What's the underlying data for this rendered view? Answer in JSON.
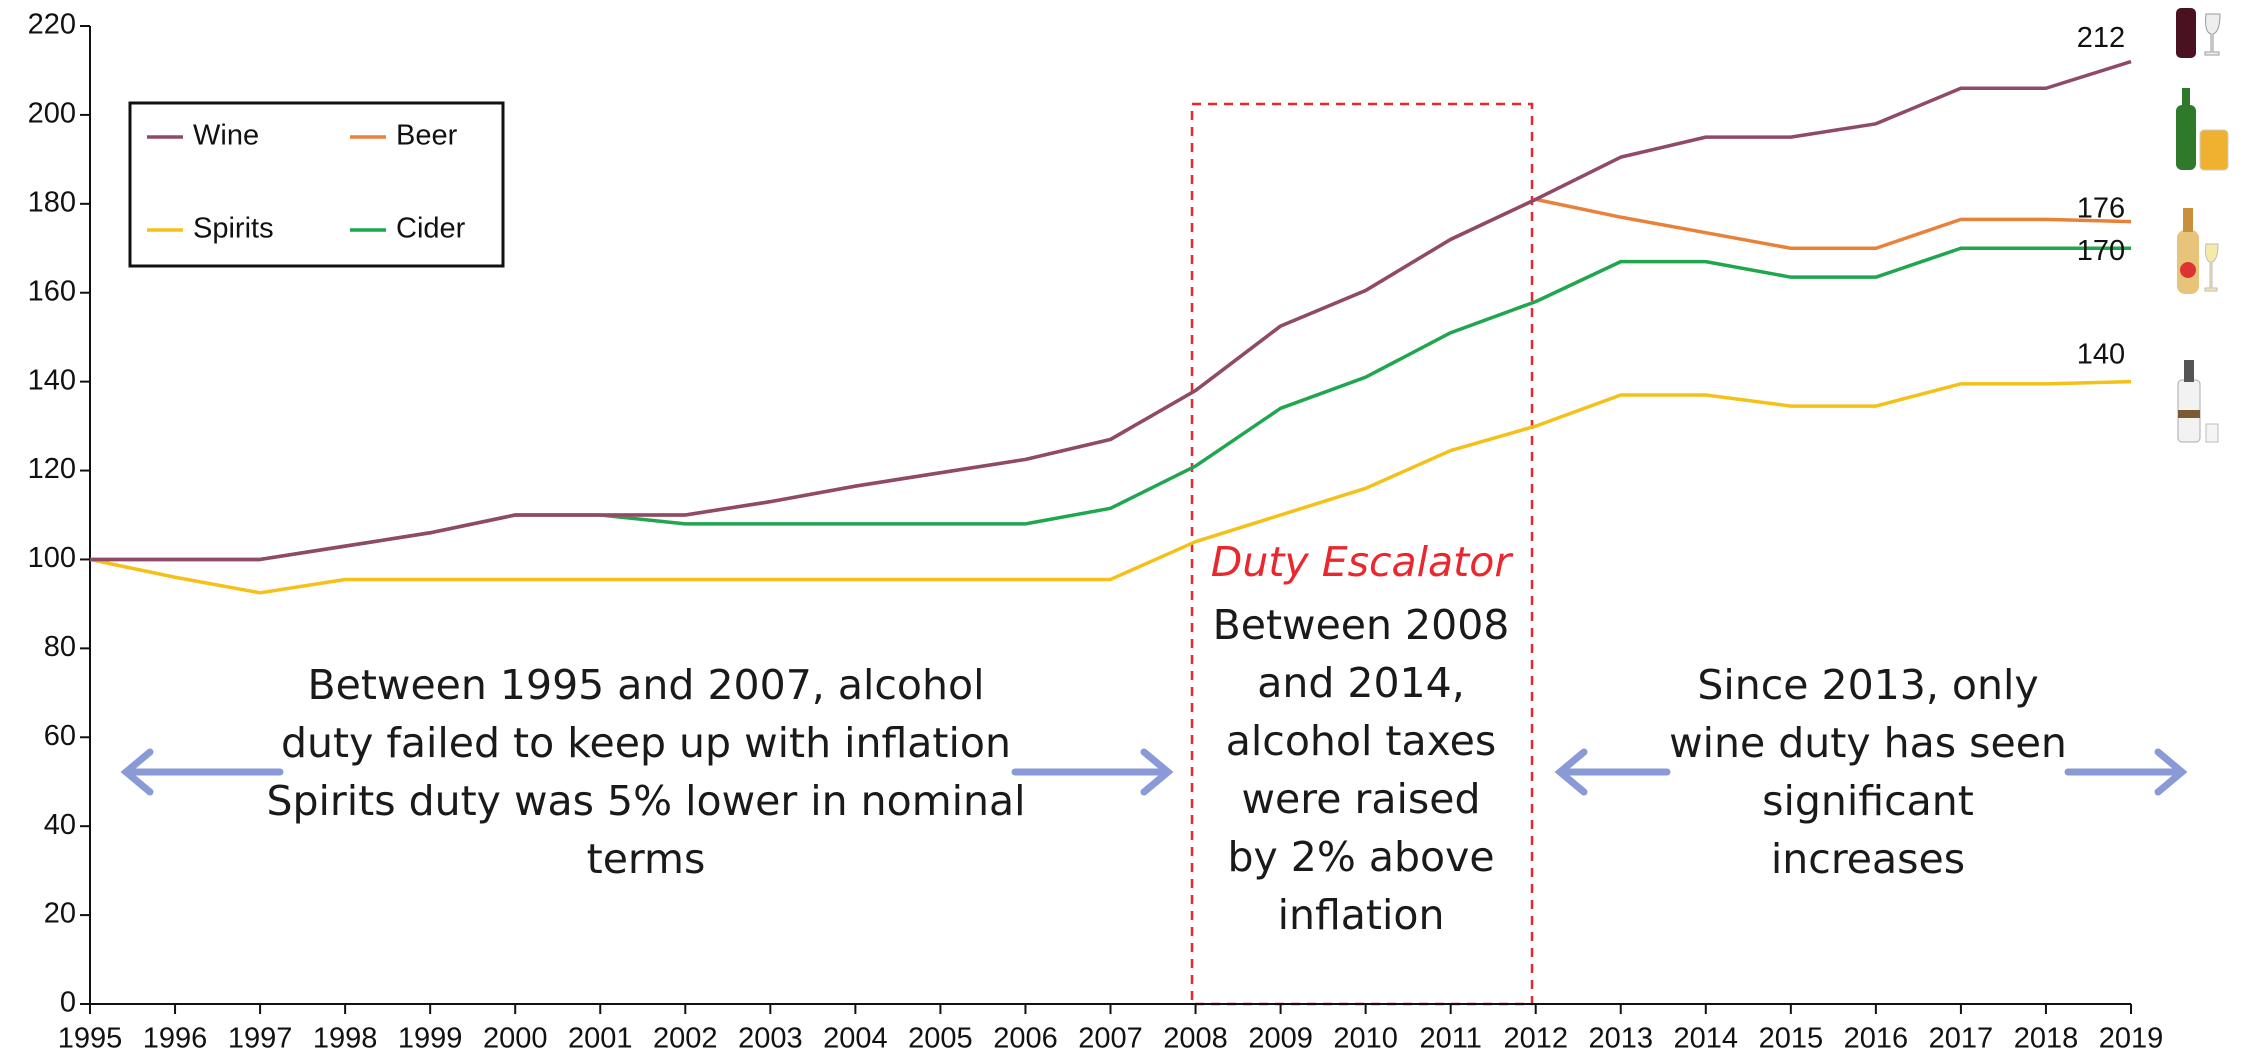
{
  "chart_data": {
    "type": "line",
    "x": [
      1995,
      1996,
      1997,
      1998,
      1999,
      2000,
      2001,
      2002,
      2003,
      2004,
      2005,
      2006,
      2007,
      2008,
      2009,
      2010,
      2011,
      2012,
      2013,
      2014,
      2015,
      2016,
      2017,
      2018,
      2019
    ],
    "xlim": [
      1995,
      2019
    ],
    "xticks": [
      1995,
      1996,
      1997,
      1998,
      1999,
      2000,
      2001,
      2002,
      2003,
      2004,
      2005,
      2006,
      2007,
      2008,
      2009,
      2010,
      2011,
      2012,
      2013,
      2014,
      2015,
      2016,
      2017,
      2018,
      2019
    ],
    "ylim": [
      0,
      220
    ],
    "yticks": [
      0,
      20,
      40,
      60,
      80,
      100,
      120,
      140,
      160,
      180,
      200,
      220
    ],
    "legend": "upper left",
    "series": [
      {
        "name": "Wine",
        "color": "#8e4a68",
        "values": [
          100,
          100,
          100,
          103,
          106,
          110,
          110,
          110,
          113,
          116.5,
          119.5,
          122.5,
          127,
          138,
          152.5,
          160.5,
          172,
          181,
          190.5,
          195,
          195,
          198,
          206,
          206,
          212
        ],
        "value_labels": [
          null,
          null,
          null,
          null,
          null,
          null,
          null,
          null,
          null,
          null,
          null,
          null,
          null,
          null,
          null,
          null,
          null,
          null,
          null,
          null,
          null,
          null,
          null,
          null,
          "212"
        ]
      },
      {
        "name": "Beer",
        "color": "#e8823a",
        "values": [
          100,
          100,
          100,
          103,
          106,
          110,
          110,
          110,
          113,
          116.5,
          119.5,
          122.5,
          127,
          138,
          152.5,
          160.5,
          172,
          181,
          177,
          173.5,
          170,
          170,
          176.5,
          176.5,
          176
        ],
        "value_labels": [
          null,
          null,
          null,
          null,
          null,
          null,
          null,
          null,
          null,
          null,
          null,
          null,
          null,
          null,
          null,
          null,
          null,
          null,
          null,
          null,
          null,
          null,
          null,
          null,
          "176"
        ]
      },
      {
        "name": "Spirits",
        "color": "#f5c018",
        "values": [
          100,
          96,
          92.5,
          95.5,
          95.5,
          95.5,
          95.5,
          95.5,
          95.5,
          95.5,
          95.5,
          95.5,
          95.5,
          104,
          110,
          116,
          124.5,
          130,
          137,
          137,
          134.5,
          134.5,
          139.5,
          139.5,
          140
        ],
        "value_labels": [
          null,
          null,
          null,
          null,
          null,
          null,
          null,
          null,
          null,
          null,
          null,
          null,
          null,
          null,
          null,
          null,
          null,
          null,
          null,
          null,
          null,
          null,
          null,
          null,
          "140"
        ]
      },
      {
        "name": "Cider",
        "color": "#1fa64e",
        "values": [
          100,
          100,
          100,
          103,
          106,
          110,
          110,
          108,
          108,
          108,
          108,
          108,
          111.5,
          121,
          134,
          141,
          151,
          158,
          167,
          167,
          163.5,
          163.5,
          170,
          170,
          170
        ],
        "value_labels": [
          null,
          null,
          null,
          null,
          null,
          null,
          null,
          null,
          null,
          null,
          null,
          null,
          null,
          null,
          null,
          null,
          null,
          null,
          null,
          null,
          null,
          null,
          null,
          null,
          "170"
        ]
      }
    ],
    "annotations": {
      "left": [
        "Between 1995 and 2007, alcohol",
        "duty failed to keep up with inflation",
        "Spirits duty was 5% lower in nominal",
        "terms"
      ],
      "escalator_title": "Duty Escalator",
      "escalator": [
        "Between 2008",
        "and 2014,",
        "alcohol taxes",
        "were raised",
        "by 2% above",
        "inflation"
      ],
      "right": [
        "Since 2013, only",
        "wine duty has seen",
        "significant",
        "increases"
      ]
    }
  }
}
